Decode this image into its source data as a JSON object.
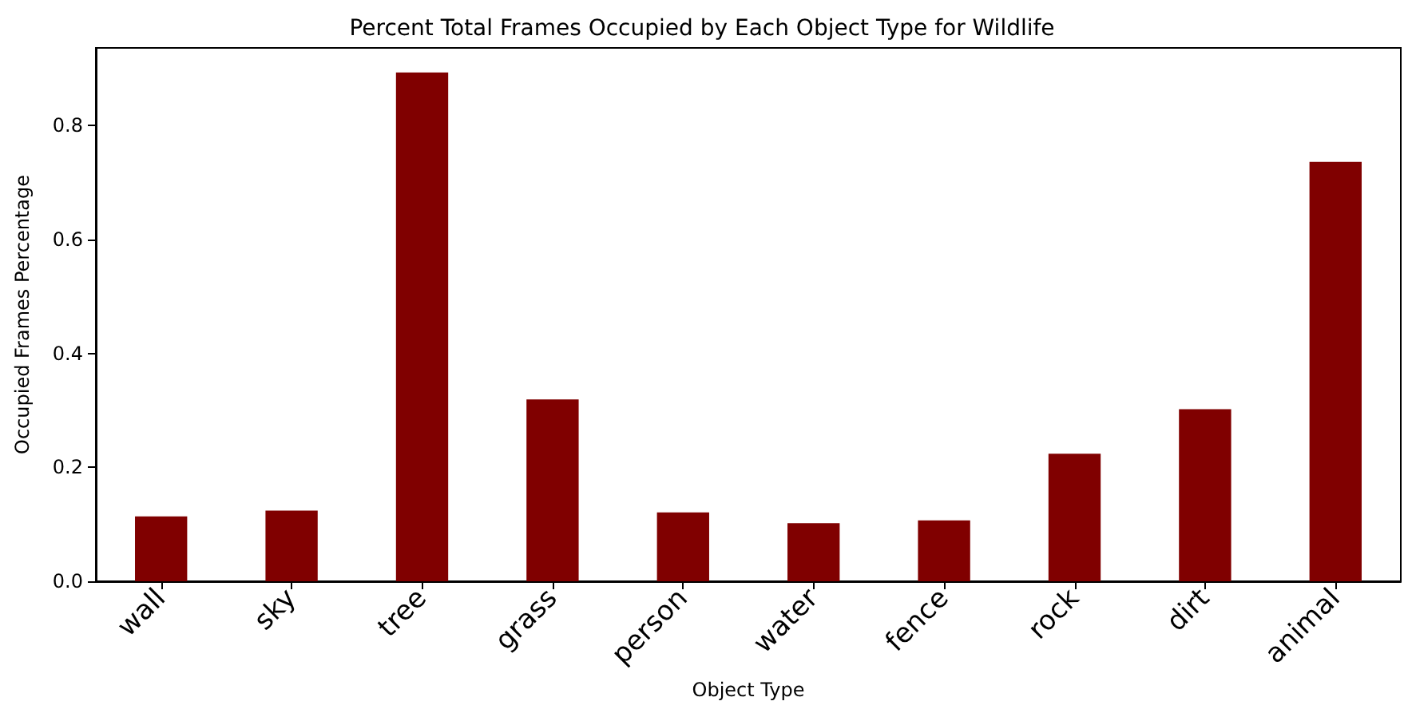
{
  "chart_data": {
    "type": "bar",
    "title": "Percent Total Frames Occupied by Each Object Type for Wildlife",
    "xlabel": "Object Type",
    "ylabel": "Occupied Frames Percentage",
    "categories": [
      "wall",
      "sky",
      "tree",
      "grass",
      "person",
      "water",
      "fence",
      "rock",
      "dirt",
      "animal"
    ],
    "values": [
      0.114,
      0.124,
      0.893,
      0.319,
      0.121,
      0.102,
      0.107,
      0.224,
      0.302,
      0.736
    ],
    "color": "#800000",
    "ylim": [
      0,
      0.936
    ],
    "yticks": [
      {
        "value": 0,
        "label": "0.0"
      },
      {
        "value": 0.2,
        "label": "0.2"
      },
      {
        "value": 0.4,
        "label": "0.4"
      },
      {
        "value": 0.6,
        "label": "0.6"
      },
      {
        "value": 0.8,
        "label": "0.8"
      }
    ],
    "grid": false
  }
}
